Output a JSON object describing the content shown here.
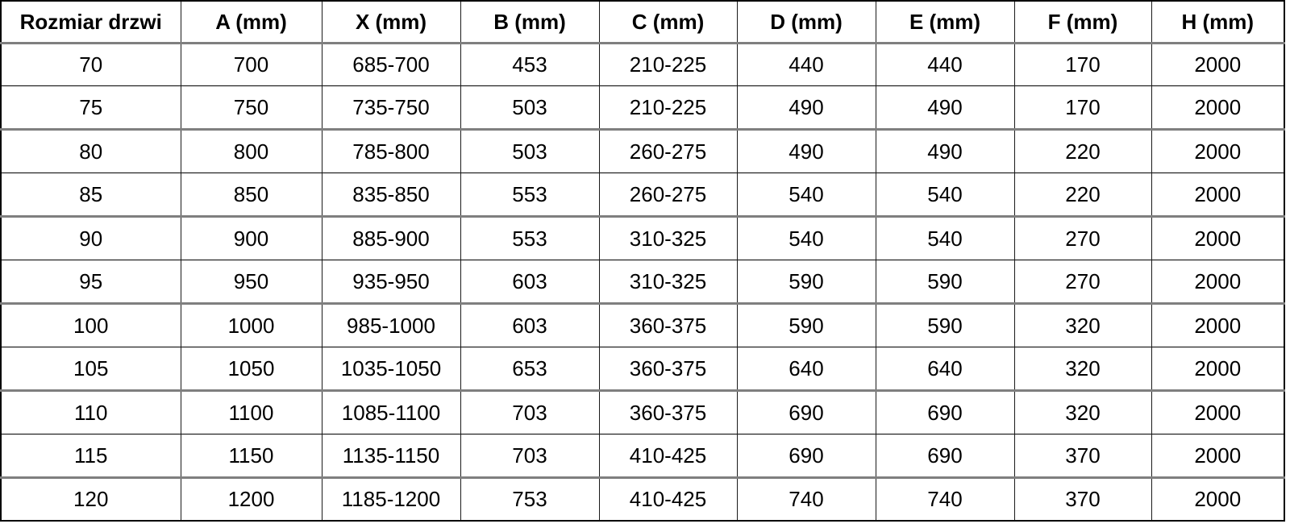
{
  "table": {
    "columns": [
      "Rozmiar drzwi",
      "A (mm)",
      "X (mm)",
      "B (mm)",
      "C (mm)",
      "D (mm)",
      "E (mm)",
      "F (mm)",
      "H (mm)"
    ],
    "rows": [
      [
        "70",
        "700",
        "685-700",
        "453",
        "210-225",
        "440",
        "440",
        "170",
        "2000"
      ],
      [
        "75",
        "750",
        "735-750",
        "503",
        "210-225",
        "490",
        "490",
        "170",
        "2000"
      ],
      [
        "80",
        "800",
        "785-800",
        "503",
        "260-275",
        "490",
        "490",
        "220",
        "2000"
      ],
      [
        "85",
        "850",
        "835-850",
        "553",
        "260-275",
        "540",
        "540",
        "220",
        "2000"
      ],
      [
        "90",
        "900",
        "885-900",
        "553",
        "310-325",
        "540",
        "540",
        "270",
        "2000"
      ],
      [
        "95",
        "950",
        "935-950",
        "603",
        "310-325",
        "590",
        "590",
        "270",
        "2000"
      ],
      [
        "100",
        "1000",
        "985-1000",
        "603",
        "360-375",
        "590",
        "590",
        "320",
        "2000"
      ],
      [
        "105",
        "1050",
        "1035-1050",
        "653",
        "360-375",
        "640",
        "640",
        "320",
        "2000"
      ],
      [
        "110",
        "1100",
        "1085-1100",
        "703",
        "360-375",
        "690",
        "690",
        "320",
        "2000"
      ],
      [
        "115",
        "1150",
        "1135-1150",
        "703",
        "410-425",
        "690",
        "690",
        "370",
        "2000"
      ],
      [
        "120",
        "1200",
        "1185-1200",
        "753",
        "410-425",
        "740",
        "740",
        "370",
        "2000"
      ]
    ]
  },
  "colors": {
    "text": "#000000",
    "background": "#ffffff",
    "outer_border": "#000000",
    "grid_line": "#1a1a1a",
    "group_divider": "#7f7f7f"
  }
}
